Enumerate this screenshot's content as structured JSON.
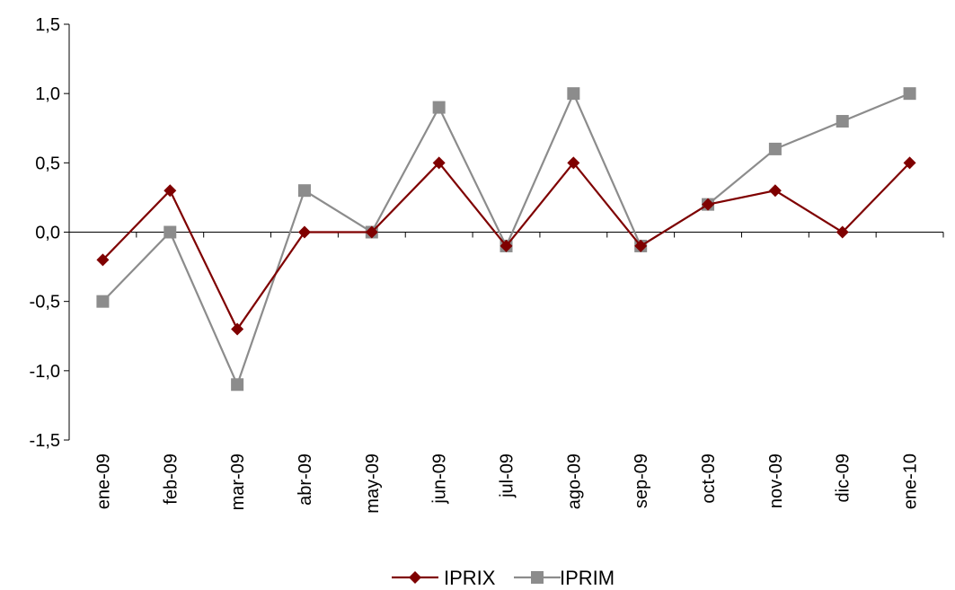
{
  "chart_data": {
    "type": "line",
    "title": "",
    "xlabel": "",
    "ylabel": "",
    "categories": [
      "ene-09",
      "feb-09",
      "mar-09",
      "abr-09",
      "may-09",
      "jun-09",
      "jul-09",
      "ago-09",
      "sep-09",
      "oct-09",
      "nov-09",
      "dic-09",
      "ene-10"
    ],
    "ylim": [
      -1.5,
      1.5
    ],
    "yticks": [
      "-1,5",
      "-1,0",
      "-0,5",
      "0,0",
      "0,5",
      "1,0",
      "1,5"
    ],
    "ytick_values": [
      -1.5,
      -1.0,
      -0.5,
      0.0,
      0.5,
      1.0,
      1.5
    ],
    "grid": false,
    "legend_position": "bottom",
    "series": [
      {
        "name": "IPRIX",
        "color": "#7f0000",
        "marker": "diamond",
        "values": [
          -0.2,
          0.3,
          -0.7,
          0.0,
          0.0,
          0.5,
          -0.1,
          0.5,
          -0.1,
          0.2,
          0.3,
          0.0,
          0.5
        ]
      },
      {
        "name": "IPRIM",
        "color": "#8c8c8c",
        "marker": "square",
        "values": [
          -0.5,
          0.0,
          -1.1,
          0.3,
          0.0,
          0.9,
          -0.1,
          1.0,
          -0.1,
          0.2,
          0.6,
          0.8,
          1.0
        ]
      }
    ]
  }
}
